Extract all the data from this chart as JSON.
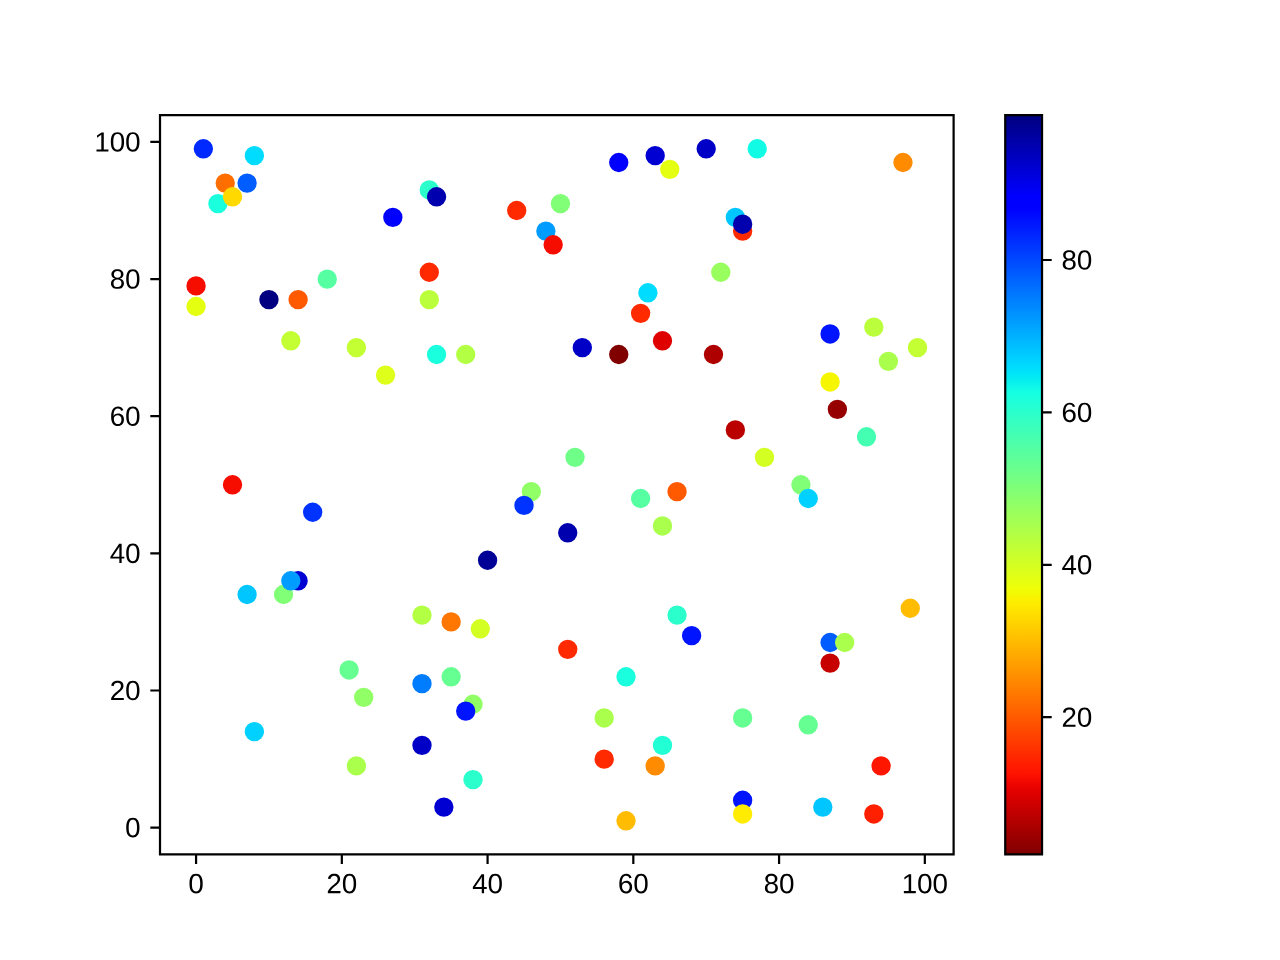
{
  "chart_data": {
    "type": "scatter",
    "marker": "circle",
    "x": [
      1,
      8,
      4,
      7,
      3,
      5,
      0,
      0,
      10,
      14,
      18,
      13,
      22,
      26,
      27,
      32,
      33,
      32,
      32,
      33,
      37,
      44,
      48,
      49,
      50,
      5,
      58,
      63,
      65,
      70,
      77,
      97,
      74,
      75,
      75,
      72,
      62,
      61,
      64,
      53,
      58,
      71,
      87,
      93,
      99,
      95,
      87,
      88,
      74,
      92,
      52,
      78,
      83,
      16,
      46,
      45,
      51,
      40,
      7,
      12,
      14,
      13,
      31,
      35,
      39,
      21,
      23,
      31,
      35,
      38,
      37,
      8,
      31,
      22,
      38,
      34,
      61,
      66,
      84,
      64,
      98,
      66,
      68,
      51,
      87,
      89,
      87,
      59,
      56,
      75,
      84,
      64,
      56,
      63,
      94,
      75,
      75,
      86,
      93,
      59
    ],
    "values": [
      99,
      98,
      94,
      94,
      91,
      92,
      79,
      76,
      77,
      77,
      80,
      71,
      70,
      66,
      89,
      93,
      92,
      81,
      77,
      69,
      69,
      90,
      87,
      85,
      91,
      50,
      97,
      98,
      96,
      99,
      99,
      97,
      89,
      87,
      88,
      81,
      78,
      75,
      71,
      70,
      69,
      69,
      72,
      73,
      70,
      68,
      65,
      61,
      58,
      57,
      54,
      54,
      50,
      46,
      49,
      47,
      43,
      39,
      34,
      34,
      36,
      36,
      31,
      30,
      29,
      23,
      19,
      21,
      22,
      18,
      17,
      14,
      12,
      9,
      7,
      3,
      48,
      49,
      48,
      44,
      32,
      31,
      28,
      26,
      27,
      27,
      24,
      22,
      16,
      16,
      15,
      12,
      10,
      9,
      9,
      4,
      2,
      3,
      2,
      1
    ],
    "cvalues": [
      83,
      66,
      22,
      78,
      62,
      33,
      12,
      38,
      99,
      20,
      55,
      42,
      42,
      39,
      87,
      60,
      95,
      15,
      43,
      62,
      44,
      15,
      72,
      12,
      50,
      12,
      88,
      92,
      38,
      93,
      63,
      25,
      68,
      15,
      95,
      47,
      66,
      15,
      10,
      93,
      2,
      6,
      85,
      43,
      42,
      45,
      36,
      4,
      7,
      57,
      52,
      40,
      50,
      82,
      48,
      82,
      95,
      97,
      68,
      50,
      92,
      72,
      44,
      23,
      40,
      53,
      48,
      75,
      53,
      48,
      85,
      67,
      93,
      45,
      60,
      92,
      55,
      20,
      67,
      45,
      30,
      60,
      85,
      15,
      78,
      45,
      8,
      62,
      45,
      53,
      53,
      61,
      15,
      25,
      13,
      85,
      35,
      68,
      14,
      30
    ],
    "xlim": [
      -4.95,
      103.95
    ],
    "ylim": [
      -3.9,
      103.9
    ],
    "xticks": [
      0,
      20,
      40,
      60,
      80,
      100
    ],
    "yticks": [
      0,
      20,
      40,
      60,
      80,
      100
    ],
    "clim": [
      2,
      99
    ],
    "cticks": [
      20,
      40,
      60,
      80
    ]
  }
}
